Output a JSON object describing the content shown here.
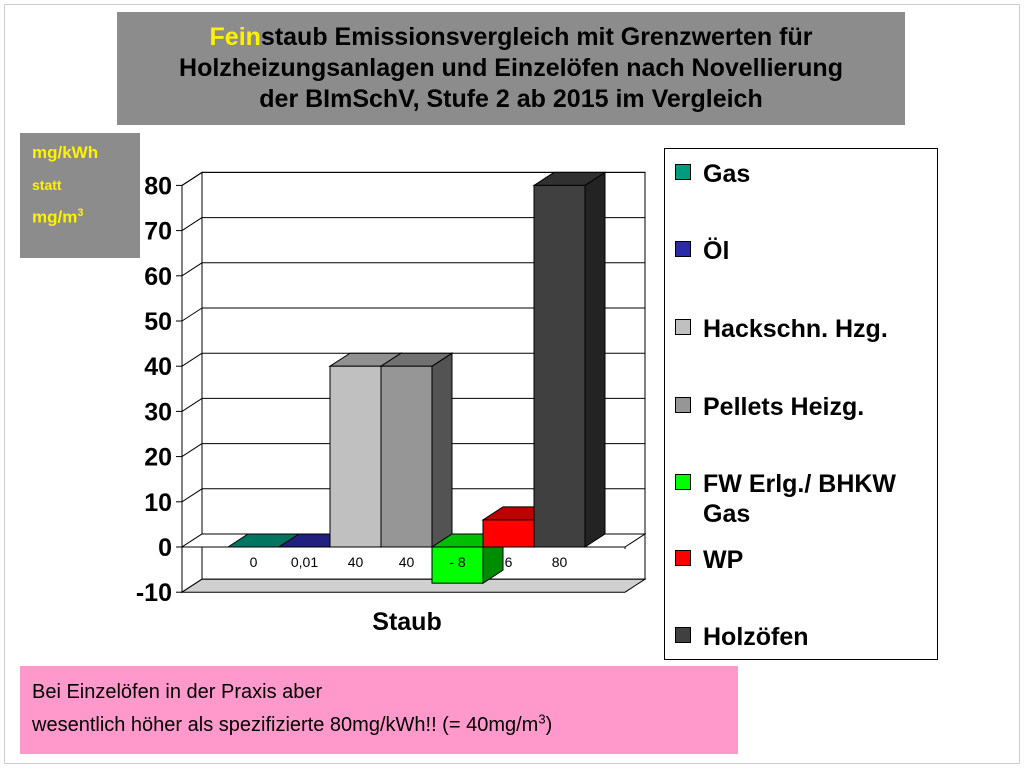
{
  "title": {
    "line1_highlight": "Fein",
    "line1_rest": "staub Emissionsvergleich mit Grenzwerten für",
    "line2": "Holzheizungsanlagen und Einzelöfen nach Novellierung",
    "line3": "der BImSchV,  Stufe 2 ab 2015   im Vergleich"
  },
  "unit_box": {
    "line1": "mg/kWh",
    "line2": "statt",
    "line3_base": "mg/m",
    "line3_sup": "3"
  },
  "note": {
    "line1": "Bei Einzelöfen in der Praxis aber",
    "line2_base": "wesentlich höher als spezifizierte  80mg/kWh!!  (= 40mg/m",
    "line2_sup": "3",
    "line2_end": ")"
  },
  "chart_data": {
    "type": "bar",
    "style": "3d",
    "categories": [
      "Staub"
    ],
    "xlabel": "Staub",
    "ylabel": "",
    "ylim": [
      -10,
      80
    ],
    "yticks": [
      "-10",
      "0",
      "10",
      "20",
      "30",
      "40",
      "50",
      "60",
      "70",
      "80"
    ],
    "grid": true,
    "legend_position": "right",
    "series": [
      {
        "name": "Gas",
        "value": 0,
        "label": "0",
        "color": "#009c7f"
      },
      {
        "name": "Öl",
        "value": 0.01,
        "label": "0,01",
        "color": "#2b2ba8"
      },
      {
        "name": "Hackschn. Hzg.",
        "value": 40,
        "label": "40",
        "color": "#c0c0c0"
      },
      {
        "name": "Pellets Heizg.",
        "value": 40,
        "label": "40",
        "color": "#969696"
      },
      {
        "name": "FW Erlg./ BHKW Gas",
        "value": -8,
        "label": "- 8",
        "color": "#00ff00"
      },
      {
        "name": "WP",
        "value": 6,
        "label": "6",
        "color": "#ff0000"
      },
      {
        "name": "Holzöfen",
        "value": 80,
        "label": "80",
        "color": "#404040"
      }
    ]
  }
}
